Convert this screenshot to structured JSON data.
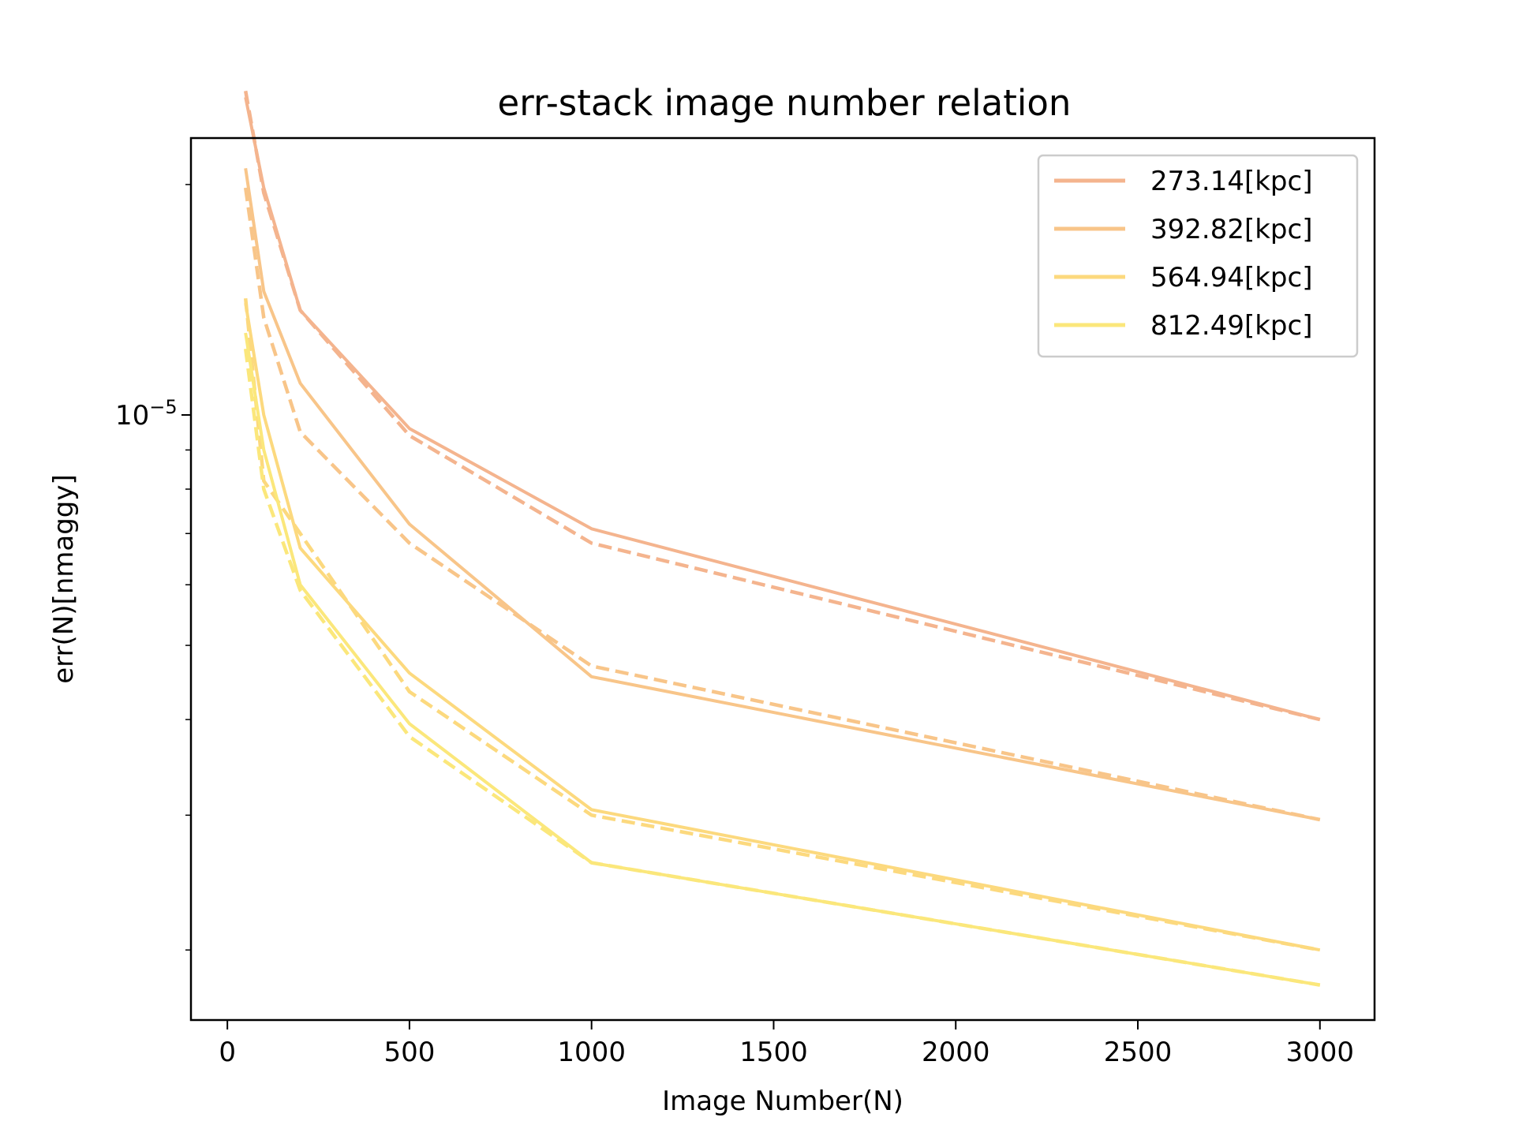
{
  "chart_data": {
    "type": "line",
    "title": "err-stack image number relation",
    "xlabel": "Image Number(N)",
    "ylabel": "err(N)[nmaggy]",
    "xlim": [
      -100,
      3150
    ],
    "ylim": [
      1.62e-06,
      2.3e-05
    ],
    "yscale": "log",
    "x_ticks": [
      0,
      500,
      1000,
      1500,
      2000,
      2500,
      3000
    ],
    "x_tick_labels": [
      "0",
      "500",
      "1000",
      "1500",
      "2000",
      "2500",
      "3000"
    ],
    "y_major_ticks": [
      1e-05
    ],
    "y_major_tick_labels": [
      "10"
    ],
    "y_major_tick_exponent": "−5",
    "y_minor_ticks": [
      2e-06,
      3e-06,
      4e-06,
      5e-06,
      6e-06,
      7e-06,
      8e-06,
      9e-06,
      2e-05
    ],
    "grid": false,
    "legend_position": "top-right",
    "x": [
      50,
      100,
      200,
      500,
      1000,
      3000
    ],
    "series": [
      {
        "name": "273.14[kpc]",
        "color": "#f4b48e",
        "values": [
          2.6e-05,
          1.98e-05,
          1.37e-05,
          9.6e-06,
          7.1e-06,
          4e-06
        ],
        "fit": [
          2.65e-05,
          1.95e-05,
          1.37e-05,
          9.4e-06,
          6.8e-06,
          4e-06
        ]
      },
      {
        "name": "392.82[kpc]",
        "color": "#f8c589",
        "values": [
          2.1e-05,
          1.45e-05,
          1.1e-05,
          7.2e-06,
          4.55e-06,
          2.96e-06
        ],
        "fit": [
          1.98e-05,
          1.34e-05,
          9.5e-06,
          6.8e-06,
          4.7e-06,
          2.96e-06
        ]
      },
      {
        "name": "564.94[kpc]",
        "color": "#fcd97e",
        "values": [
          1.4e-05,
          1e-05,
          6.7e-06,
          4.6e-06,
          3.05e-06,
          2e-06
        ],
        "fit": [
          1.42e-05,
          8.2e-06,
          7e-06,
          4.35e-06,
          3e-06,
          2e-06
        ]
      },
      {
        "name": "812.49[kpc]",
        "color": "#fbe77b",
        "values": [
          1.28e-05,
          9e-06,
          6e-06,
          3.95e-06,
          2.6e-06,
          1.8e-06
        ],
        "fit": [
          1.22e-05,
          8e-06,
          5.9e-06,
          3.8e-06,
          2.6e-06,
          1.8e-06
        ]
      }
    ]
  }
}
